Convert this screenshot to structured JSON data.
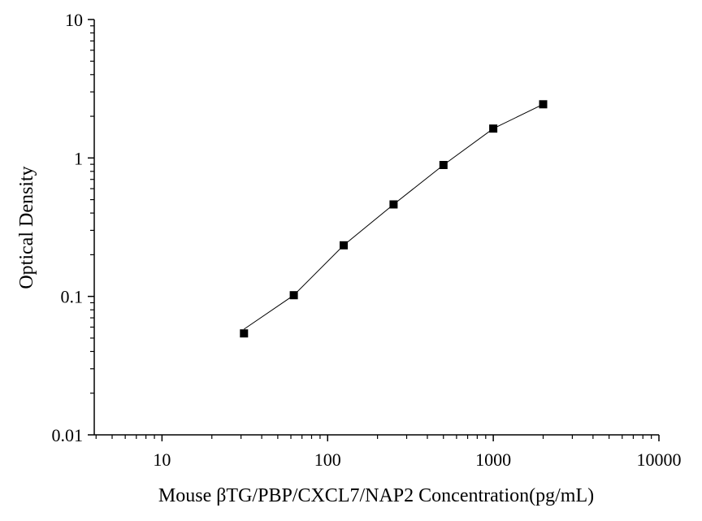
{
  "chart_data": {
    "type": "scatter",
    "title": "",
    "xlabel": "Mouse βTG/PBP/CXCL7/NAP2  Concentration(pg/mL)",
    "ylabel": "Optical Density",
    "xscale": "log",
    "yscale": "log",
    "xlim": [
      3.9,
      10000
    ],
    "ylim": [
      0.01,
      10
    ],
    "x_ticks": [
      10,
      100,
      1000,
      10000
    ],
    "x_tick_labels": [
      "10",
      "100",
      "1000",
      "10000"
    ],
    "y_ticks": [
      0.01,
      0.1,
      1,
      10
    ],
    "y_tick_labels": [
      "0.01",
      "0.1",
      "1",
      "10"
    ],
    "grid": false,
    "legend": "none",
    "marker": "square",
    "marker_color": "#000000",
    "fit_line": true,
    "fit_line_x_start": 31.25,
    "fit_line_y_start": 0.058,
    "series": [
      {
        "x": [
          31.25,
          62.5,
          125,
          250,
          500,
          1000,
          2000
        ],
        "y": [
          0.054,
          0.102,
          0.234,
          0.462,
          0.89,
          1.63,
          2.44
        ]
      }
    ]
  }
}
